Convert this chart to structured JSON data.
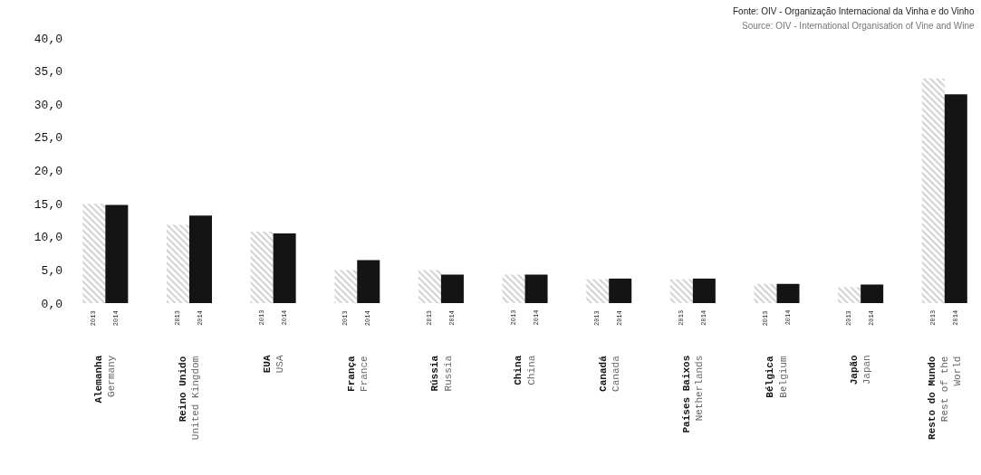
{
  "chart_data": {
    "type": "bar",
    "categories": [
      "Alemanha\nGermany",
      "Reino Unido\nUnited Kingdom",
      "EUA\nUSA",
      "França\nFrance",
      "Rússia\nRussia",
      "China\nChina",
      "Canadá\nCanada",
      "Países Baixos\nNetherlands",
      "Bélgica\nBelgium",
      "Japão\nJapan",
      "Resto do Mundo\nRest of the\nWorld"
    ],
    "series": [
      {
        "name": "2013",
        "color": "#9a9a9a",
        "values": [
          15.0,
          11.8,
          10.8,
          5.0,
          5.0,
          4.3,
          3.6,
          3.6,
          2.9,
          2.4,
          33.9
        ]
      },
      {
        "name": "2014",
        "color": "#141414",
        "values": [
          14.8,
          13.2,
          10.5,
          6.5,
          4.3,
          4.3,
          3.7,
          3.7,
          2.9,
          2.8,
          31.5
        ]
      }
    ],
    "ylim": [
      0,
      40
    ],
    "yticks": [
      {
        "value": 0,
        "label": "0,0"
      },
      {
        "value": 5,
        "label": "5,0"
      },
      {
        "value": 10,
        "label": "10,0"
      },
      {
        "value": 15,
        "label": "15,0"
      },
      {
        "value": 20,
        "label": "20,0"
      },
      {
        "value": 25,
        "label": "25,0"
      },
      {
        "value": 30,
        "label": "30,0"
      },
      {
        "value": 35,
        "label": "35,0"
      },
      {
        "value": 40,
        "label": "40,0"
      }
    ],
    "legend": false,
    "annotations": [
      "Fonte: OIV - Organização Internacional da Vinha e do Vinho",
      "Source: OIV - International Organisation of Vine and Wine"
    ]
  }
}
